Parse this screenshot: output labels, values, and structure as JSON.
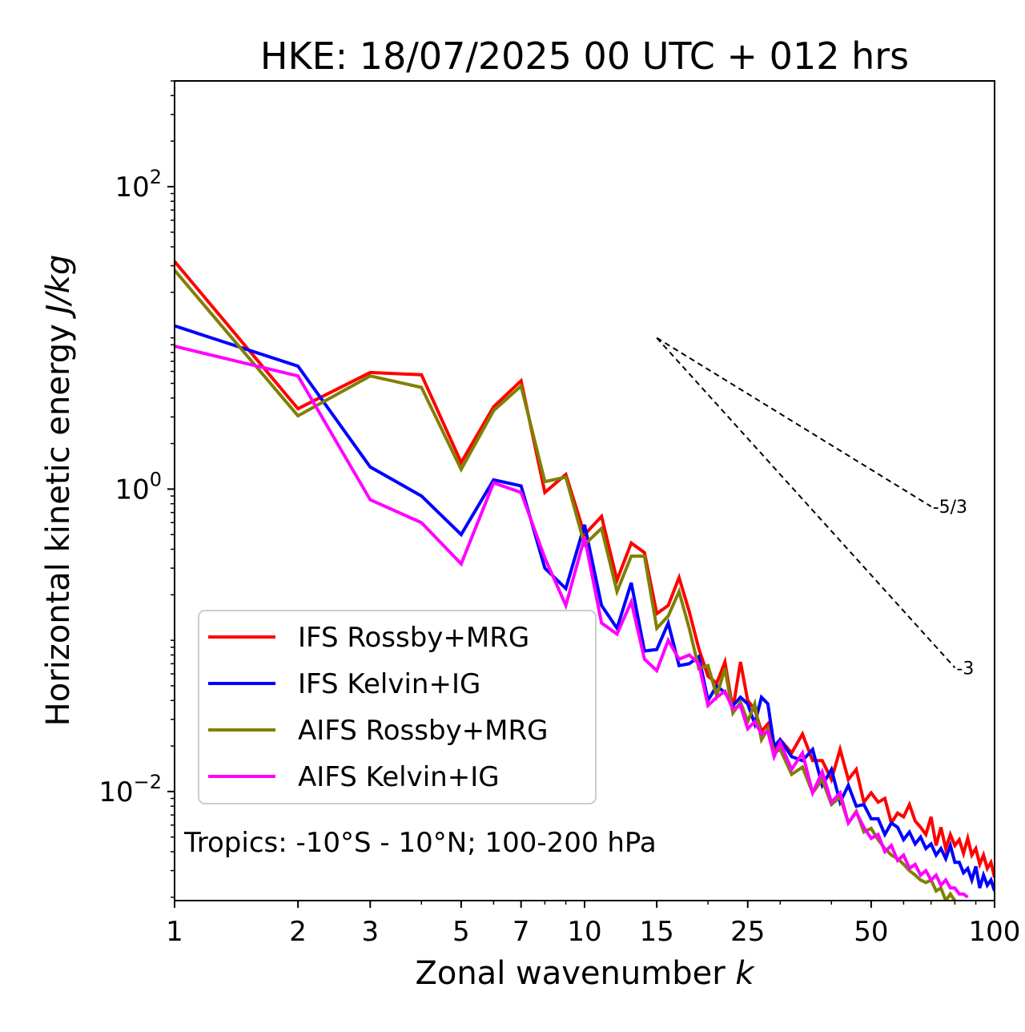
{
  "chart_data": {
    "type": "line",
    "title": "HKE: 18/07/2025 00 UTC + 012 hrs",
    "xlabel": "Zonal wavenumber",
    "xlabel_var": "k",
    "ylabel": "Horizontal kinetic energy",
    "ylabel_unit": "J/kg",
    "xscale": "log",
    "yscale": "log",
    "xlim": [
      1,
      100
    ],
    "ylim": [
      0.0019,
      500
    ],
    "xticks": [
      {
        "value": 1,
        "label": "1"
      },
      {
        "value": 2,
        "label": "2"
      },
      {
        "value": 3,
        "label": "3"
      },
      {
        "value": 5,
        "label": "5"
      },
      {
        "value": 7,
        "label": "7"
      },
      {
        "value": 10,
        "label": "10"
      },
      {
        "value": 15,
        "label": "15"
      },
      {
        "value": 25,
        "label": "25"
      },
      {
        "value": 50,
        "label": "50"
      },
      {
        "value": 100,
        "label": "100"
      }
    ],
    "yticks": [
      {
        "value": 100,
        "base": "10",
        "exp": "2"
      },
      {
        "value": 1,
        "base": "10",
        "exp": "0"
      },
      {
        "value": 0.01,
        "base": "10",
        "exp": "−2"
      }
    ],
    "legend_position": "lower-left",
    "annotation": "Tropics: -10°S - 10°N; 100-200 hPa",
    "reference_slopes": [
      {
        "label": "-5/3",
        "slope": -1.6667,
        "x0": 15,
        "y0": 10,
        "x1": 70
      },
      {
        "label": "-3",
        "slope": -3,
        "x0": 15,
        "y0": 10,
        "x1": 80
      }
    ],
    "series": [
      {
        "name": "IFS Rossby+MRG",
        "color": "#ff0000",
        "x": [
          1,
          2,
          3,
          4,
          5,
          6,
          7,
          8,
          9,
          10,
          11,
          12,
          13,
          14,
          15,
          16,
          17,
          18,
          19,
          20,
          21,
          22,
          23,
          24,
          25,
          26,
          27,
          28,
          29,
          30,
          32,
          34,
          36,
          38,
          40,
          42,
          44,
          46,
          48,
          50,
          52,
          54,
          56,
          58,
          60,
          62,
          64,
          66,
          68,
          70,
          72,
          74,
          76,
          78,
          80,
          82,
          84,
          86,
          88,
          90,
          92,
          94,
          96,
          98,
          100
        ],
        "y": [
          32,
          3.4,
          5.9,
          5.7,
          1.5,
          3.5,
          5.2,
          0.95,
          1.25,
          0.5,
          0.66,
          0.25,
          0.44,
          0.38,
          0.15,
          0.17,
          0.26,
          0.155,
          0.088,
          0.058,
          0.052,
          0.072,
          0.035,
          0.072,
          0.04,
          0.035,
          0.025,
          0.028,
          0.018,
          0.022,
          0.018,
          0.024,
          0.016,
          0.016,
          0.012,
          0.019,
          0.012,
          0.014,
          0.0085,
          0.0098,
          0.0085,
          0.009,
          0.0062,
          0.0072,
          0.0068,
          0.0082,
          0.0064,
          0.0058,
          0.0052,
          0.0068,
          0.0044,
          0.0058,
          0.0042,
          0.0052,
          0.0044,
          0.0048,
          0.0039,
          0.0049,
          0.0038,
          0.0042,
          0.0033,
          0.0038,
          0.0031,
          0.0034,
          0.0027
        ]
      },
      {
        "name": "IFS Kelvin+IG",
        "color": "#0000ff",
        "x": [
          1,
          2,
          3,
          4,
          5,
          6,
          7,
          8,
          9,
          10,
          11,
          12,
          13,
          14,
          15,
          16,
          17,
          18,
          19,
          20,
          21,
          22,
          23,
          24,
          25,
          26,
          27,
          28,
          29,
          30,
          32,
          34,
          36,
          38,
          40,
          42,
          44,
          46,
          48,
          50,
          52,
          54,
          56,
          58,
          60,
          62,
          64,
          66,
          68,
          70,
          72,
          74,
          76,
          78,
          80,
          82,
          84,
          86,
          88,
          90,
          92,
          94,
          96,
          98,
          100
        ],
        "y": [
          12,
          6.5,
          1.4,
          0.9,
          0.5,
          1.15,
          1.05,
          0.3,
          0.22,
          0.58,
          0.17,
          0.12,
          0.24,
          0.085,
          0.087,
          0.13,
          0.068,
          0.07,
          0.078,
          0.04,
          0.05,
          0.045,
          0.037,
          0.042,
          0.038,
          0.028,
          0.042,
          0.038,
          0.02,
          0.022,
          0.017,
          0.016,
          0.019,
          0.011,
          0.014,
          0.0085,
          0.011,
          0.008,
          0.0082,
          0.0066,
          0.0066,
          0.0052,
          0.0062,
          0.0058,
          0.0048,
          0.0054,
          0.0045,
          0.005,
          0.0042,
          0.0045,
          0.0038,
          0.0042,
          0.0036,
          0.0044,
          0.0034,
          0.0034,
          0.0029,
          0.0031,
          0.0026,
          0.0032,
          0.0023,
          0.0028,
          0.0024,
          0.0026,
          0.0022
        ]
      },
      {
        "name": "AIFS Rossby+MRG",
        "color": "#808000",
        "x": [
          1,
          2,
          3,
          4,
          5,
          6,
          7,
          8,
          9,
          10,
          11,
          12,
          13,
          14,
          15,
          16,
          17,
          18,
          19,
          20,
          21,
          22,
          23,
          24,
          25,
          26,
          27,
          28,
          29,
          30,
          32,
          34,
          36,
          38,
          40,
          42,
          44,
          46,
          48,
          50,
          52,
          54,
          56,
          58,
          60,
          62,
          64,
          66,
          68,
          70,
          72,
          74,
          76,
          78,
          80
        ],
        "y": [
          28,
          3.05,
          5.6,
          4.7,
          1.35,
          3.3,
          4.8,
          1.12,
          1.2,
          0.43,
          0.55,
          0.21,
          0.36,
          0.36,
          0.12,
          0.145,
          0.21,
          0.12,
          0.065,
          0.068,
          0.043,
          0.065,
          0.033,
          0.039,
          0.029,
          0.038,
          0.022,
          0.026,
          0.018,
          0.019,
          0.013,
          0.0145,
          0.0098,
          0.012,
          0.0082,
          0.0092,
          0.0062,
          0.0074,
          0.0054,
          0.0057,
          0.0048,
          0.0042,
          0.0038,
          0.0036,
          0.0033,
          0.003,
          0.0028,
          0.0026,
          0.0025,
          0.0026,
          0.0022,
          0.0023,
          0.0019,
          0.0021,
          0.0019
        ]
      },
      {
        "name": "AIFS Kelvin+IG",
        "color": "#ff00ff",
        "x": [
          1,
          2,
          3,
          4,
          5,
          6,
          7,
          8,
          9,
          10,
          11,
          12,
          13,
          14,
          15,
          16,
          17,
          18,
          19,
          20,
          21,
          22,
          23,
          24,
          25,
          26,
          27,
          28,
          29,
          30,
          32,
          34,
          36,
          38,
          40,
          42,
          44,
          46,
          48,
          50,
          52,
          54,
          56,
          58,
          60,
          62,
          64,
          66,
          68,
          70,
          72,
          74,
          76,
          78,
          80,
          82,
          84,
          86
        ],
        "y": [
          8.8,
          5.6,
          0.85,
          0.6,
          0.32,
          1.1,
          0.95,
          0.35,
          0.17,
          0.48,
          0.13,
          0.11,
          0.18,
          0.075,
          0.063,
          0.1,
          0.075,
          0.08,
          0.07,
          0.037,
          0.042,
          0.046,
          0.035,
          0.037,
          0.026,
          0.029,
          0.024,
          0.025,
          0.017,
          0.021,
          0.014,
          0.018,
          0.0098,
          0.0135,
          0.0085,
          0.0098,
          0.0062,
          0.0073,
          0.0058,
          0.0049,
          0.0052,
          0.004,
          0.0044,
          0.0035,
          0.0038,
          0.0031,
          0.0033,
          0.0028,
          0.003,
          0.0026,
          0.0028,
          0.0024,
          0.0026,
          0.0023,
          0.0023,
          0.0021,
          0.0021,
          0.002
        ]
      }
    ]
  }
}
